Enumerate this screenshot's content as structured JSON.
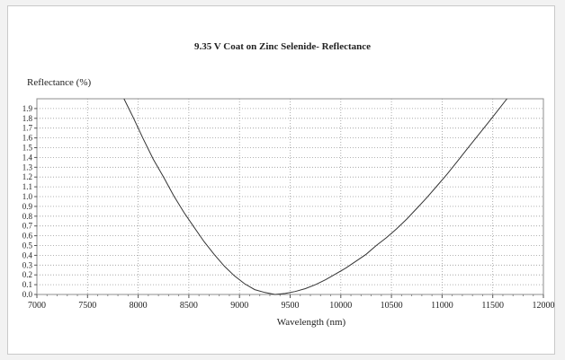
{
  "chart_data": {
    "type": "line",
    "title": "9.35 V Coat on Zinc Selenide- Reflectance",
    "xlabel": "Wavelength (nm)",
    "ylabel": "Reflectance (%)",
    "xlim": [
      7000,
      12000
    ],
    "ylim": [
      0,
      2.0
    ],
    "grid": true,
    "grid_style": "dotted",
    "line_color": "#333333",
    "x_ticks": [
      7000,
      7500,
      8000,
      8500,
      9000,
      9500,
      10000,
      10500,
      11000,
      11500,
      12000
    ],
    "y_ticks": [
      "0.0",
      "0.1",
      "0.2",
      "0.3",
      "0.4",
      "0.5",
      "0.6",
      "0.7",
      "0.8",
      "0.9",
      "1.0",
      "1.1",
      "1.2",
      "1.3",
      "1.4",
      "1.5",
      "1.6",
      "1.7",
      "1.8",
      "1.9"
    ],
    "series": [
      {
        "x": [
          7860,
          7950,
          8050,
          8150,
          8250,
          8350,
          8450,
          8550,
          8650,
          8750,
          8850,
          8950,
          9050,
          9150,
          9250,
          9350,
          9450,
          9550,
          9650,
          9750,
          9850,
          9950,
          10050,
          10150,
          10250,
          10350,
          10450,
          10550,
          10650,
          10750,
          10850,
          10950,
          11050,
          11150,
          11250,
          11350,
          11450,
          11550,
          11640
        ],
        "y": [
          2.0,
          1.81,
          1.59,
          1.38,
          1.2,
          1.01,
          0.84,
          0.69,
          0.54,
          0.41,
          0.29,
          0.19,
          0.11,
          0.05,
          0.02,
          0.0,
          0.01,
          0.03,
          0.06,
          0.1,
          0.15,
          0.21,
          0.27,
          0.34,
          0.41,
          0.5,
          0.58,
          0.67,
          0.77,
          0.88,
          0.99,
          1.11,
          1.23,
          1.36,
          1.49,
          1.62,
          1.75,
          1.88,
          2.0
        ]
      }
    ]
  }
}
